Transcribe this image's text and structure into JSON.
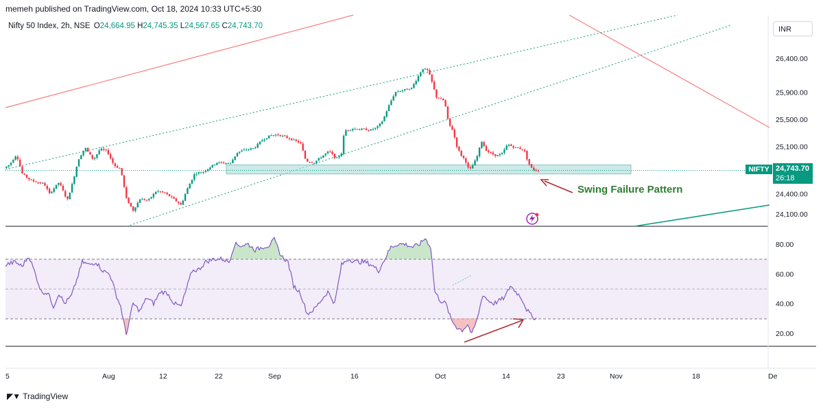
{
  "header": {
    "publish_line": "memeh published on TradingView.com, Oct 18, 2024 10:33 UTC+5:30"
  },
  "legend": {
    "symbol": "Nifty 50 Index, 2h, NSE",
    "o_label": "O",
    "o_value": "24,664.95",
    "h_label": "H",
    "h_value": "24,745.35",
    "l_label": "L",
    "l_value": "24,567.65",
    "c_label": "C",
    "c_value": "24,743.70"
  },
  "currency_label": "INR",
  "price_tag": {
    "symbol": "NIFTY",
    "price": "24,743.70",
    "countdown": "26:18"
  },
  "annotation_text": "Swing Failure Pattern",
  "brand": "TradingView",
  "colors": {
    "up": "#089981",
    "down": "#f23645",
    "rsi": "#7e57c2",
    "zone": "#b2dfdb",
    "resistance_line": "#f77c80",
    "trend_line": "#089981",
    "arrow": "#b22833"
  },
  "chart_data": [
    {
      "type": "candlestick",
      "title": "Nifty 50 Index, 2h, NSE",
      "y_axis_ticks": [
        "26,400.00",
        "25,900.00",
        "25,500.00",
        "25,100.00",
        "24,400.00",
        "24,100.00"
      ],
      "x_axis_ticks": [
        "5",
        "Aug",
        "12",
        "22",
        "Sep",
        "16",
        "Oct",
        "14",
        "23",
        "Nov",
        "18",
        "De"
      ],
      "ylim": [
        23950,
        26650
      ],
      "last_price": 24743.7,
      "support_zone": [
        24690,
        24825
      ],
      "path": [
        {
          "t": 0,
          "v": 24780
        },
        {
          "t": 8,
          "v": 24830
        },
        {
          "t": 18,
          "v": 24980
        },
        {
          "t": 26,
          "v": 24700
        },
        {
          "t": 38,
          "v": 24600
        },
        {
          "t": 50,
          "v": 24560
        },
        {
          "t": 58,
          "v": 24550
        },
        {
          "t": 66,
          "v": 24400
        },
        {
          "t": 80,
          "v": 24570
        },
        {
          "t": 92,
          "v": 24300
        },
        {
          "t": 100,
          "v": 24570
        },
        {
          "t": 108,
          "v": 24900
        },
        {
          "t": 118,
          "v": 25080
        },
        {
          "t": 130,
          "v": 24900
        },
        {
          "t": 140,
          "v": 25060
        },
        {
          "t": 150,
          "v": 25030
        },
        {
          "t": 160,
          "v": 24820
        },
        {
          "t": 170,
          "v": 24760
        },
        {
          "t": 178,
          "v": 24330
        },
        {
          "t": 188,
          "v": 24150
        },
        {
          "t": 198,
          "v": 24320
        },
        {
          "t": 210,
          "v": 24300
        },
        {
          "t": 222,
          "v": 24440
        },
        {
          "t": 234,
          "v": 24410
        },
        {
          "t": 246,
          "v": 24330
        },
        {
          "t": 258,
          "v": 24230
        },
        {
          "t": 266,
          "v": 24450
        },
        {
          "t": 278,
          "v": 24700
        },
        {
          "t": 290,
          "v": 24720
        },
        {
          "t": 300,
          "v": 24790
        },
        {
          "t": 310,
          "v": 24860
        },
        {
          "t": 322,
          "v": 24850
        },
        {
          "t": 330,
          "v": 24850
        },
        {
          "t": 340,
          "v": 25010
        },
        {
          "t": 352,
          "v": 25050
        },
        {
          "t": 364,
          "v": 25070
        },
        {
          "t": 376,
          "v": 25190
        },
        {
          "t": 388,
          "v": 25260
        },
        {
          "t": 400,
          "v": 25270
        },
        {
          "t": 412,
          "v": 25230
        },
        {
          "t": 422,
          "v": 25190
        },
        {
          "t": 432,
          "v": 25150
        },
        {
          "t": 440,
          "v": 24880
        },
        {
          "t": 452,
          "v": 24860
        },
        {
          "t": 462,
          "v": 24940
        },
        {
          "t": 474,
          "v": 25030
        },
        {
          "t": 484,
          "v": 24910
        },
        {
          "t": 492,
          "v": 25000
        },
        {
          "t": 496,
          "v": 25330
        },
        {
          "t": 508,
          "v": 25360
        },
        {
          "t": 522,
          "v": 25350
        },
        {
          "t": 534,
          "v": 25340
        },
        {
          "t": 544,
          "v": 25380
        },
        {
          "t": 552,
          "v": 25480
        },
        {
          "t": 560,
          "v": 25680
        },
        {
          "t": 570,
          "v": 25900
        },
        {
          "t": 582,
          "v": 25930
        },
        {
          "t": 594,
          "v": 25960
        },
        {
          "t": 602,
          "v": 26100
        },
        {
          "t": 610,
          "v": 26250
        },
        {
          "t": 618,
          "v": 26220
        },
        {
          "t": 624,
          "v": 26040
        },
        {
          "t": 630,
          "v": 25830
        },
        {
          "t": 636,
          "v": 25800
        },
        {
          "t": 642,
          "v": 25770
        },
        {
          "t": 648,
          "v": 25430
        },
        {
          "t": 654,
          "v": 25340
        },
        {
          "t": 660,
          "v": 25100
        },
        {
          "t": 666,
          "v": 24970
        },
        {
          "t": 672,
          "v": 24900
        },
        {
          "t": 678,
          "v": 24740
        },
        {
          "t": 684,
          "v": 24830
        },
        {
          "t": 690,
          "v": 24960
        },
        {
          "t": 696,
          "v": 25180
        },
        {
          "t": 702,
          "v": 25050
        },
        {
          "t": 710,
          "v": 24990
        },
        {
          "t": 718,
          "v": 24960
        },
        {
          "t": 726,
          "v": 24990
        },
        {
          "t": 734,
          "v": 25130
        },
        {
          "t": 742,
          "v": 25090
        },
        {
          "t": 750,
          "v": 25070
        },
        {
          "t": 758,
          "v": 25050
        },
        {
          "t": 764,
          "v": 24860
        },
        {
          "t": 770,
          "v": 24760
        },
        {
          "t": 776,
          "v": 24743.7
        }
      ]
    },
    {
      "type": "line",
      "title": "RSI",
      "y_axis_ticks": [
        "80.00",
        "60.00",
        "40.00",
        "20.00"
      ],
      "band": [
        30,
        70
      ],
      "midline": 50,
      "ylim": [
        10,
        90
      ],
      "path": [
        {
          "t": 0,
          "v": 66
        },
        {
          "t": 14,
          "v": 68
        },
        {
          "t": 24,
          "v": 65
        },
        {
          "t": 34,
          "v": 72
        },
        {
          "t": 42,
          "v": 62
        },
        {
          "t": 52,
          "v": 48
        },
        {
          "t": 62,
          "v": 47
        },
        {
          "t": 70,
          "v": 38
        },
        {
          "t": 78,
          "v": 47
        },
        {
          "t": 86,
          "v": 40
        },
        {
          "t": 96,
          "v": 45
        },
        {
          "t": 104,
          "v": 56
        },
        {
          "t": 112,
          "v": 68
        },
        {
          "t": 122,
          "v": 66
        },
        {
          "t": 132,
          "v": 68
        },
        {
          "t": 142,
          "v": 62
        },
        {
          "t": 152,
          "v": 60
        },
        {
          "t": 162,
          "v": 45
        },
        {
          "t": 168,
          "v": 38
        },
        {
          "t": 176,
          "v": 19
        },
        {
          "t": 186,
          "v": 40
        },
        {
          "t": 196,
          "v": 35
        },
        {
          "t": 206,
          "v": 44
        },
        {
          "t": 216,
          "v": 40
        },
        {
          "t": 226,
          "v": 48
        },
        {
          "t": 236,
          "v": 47
        },
        {
          "t": 246,
          "v": 40
        },
        {
          "t": 256,
          "v": 38
        },
        {
          "t": 264,
          "v": 50
        },
        {
          "t": 272,
          "v": 62
        },
        {
          "t": 282,
          "v": 63
        },
        {
          "t": 292,
          "v": 68
        },
        {
          "t": 304,
          "v": 70
        },
        {
          "t": 316,
          "v": 70
        },
        {
          "t": 326,
          "v": 68
        },
        {
          "t": 334,
          "v": 80
        },
        {
          "t": 344,
          "v": 79
        },
        {
          "t": 354,
          "v": 80
        },
        {
          "t": 364,
          "v": 76
        },
        {
          "t": 374,
          "v": 78
        },
        {
          "t": 384,
          "v": 79
        },
        {
          "t": 392,
          "v": 83
        },
        {
          "t": 402,
          "v": 72
        },
        {
          "t": 412,
          "v": 68
        },
        {
          "t": 420,
          "v": 52
        },
        {
          "t": 430,
          "v": 47
        },
        {
          "t": 440,
          "v": 33
        },
        {
          "t": 450,
          "v": 36
        },
        {
          "t": 460,
          "v": 42
        },
        {
          "t": 470,
          "v": 48
        },
        {
          "t": 480,
          "v": 40
        },
        {
          "t": 490,
          "v": 66
        },
        {
          "t": 500,
          "v": 70
        },
        {
          "t": 512,
          "v": 68
        },
        {
          "t": 524,
          "v": 68
        },
        {
          "t": 534,
          "v": 66
        },
        {
          "t": 544,
          "v": 62
        },
        {
          "t": 552,
          "v": 69
        },
        {
          "t": 562,
          "v": 78
        },
        {
          "t": 572,
          "v": 80
        },
        {
          "t": 582,
          "v": 80
        },
        {
          "t": 594,
          "v": 78
        },
        {
          "t": 604,
          "v": 80
        },
        {
          "t": 612,
          "v": 84
        },
        {
          "t": 620,
          "v": 78
        },
        {
          "t": 626,
          "v": 48
        },
        {
          "t": 634,
          "v": 42
        },
        {
          "t": 642,
          "v": 40
        },
        {
          "t": 650,
          "v": 29
        },
        {
          "t": 658,
          "v": 24
        },
        {
          "t": 666,
          "v": 22
        },
        {
          "t": 674,
          "v": 26
        },
        {
          "t": 680,
          "v": 19
        },
        {
          "t": 688,
          "v": 30
        },
        {
          "t": 696,
          "v": 46
        },
        {
          "t": 704,
          "v": 42
        },
        {
          "t": 712,
          "v": 40
        },
        {
          "t": 720,
          "v": 42
        },
        {
          "t": 728,
          "v": 44
        },
        {
          "t": 736,
          "v": 52
        },
        {
          "t": 744,
          "v": 48
        },
        {
          "t": 752,
          "v": 44
        },
        {
          "t": 760,
          "v": 36
        },
        {
          "t": 768,
          "v": 31
        },
        {
          "t": 774,
          "v": 30
        }
      ]
    }
  ]
}
